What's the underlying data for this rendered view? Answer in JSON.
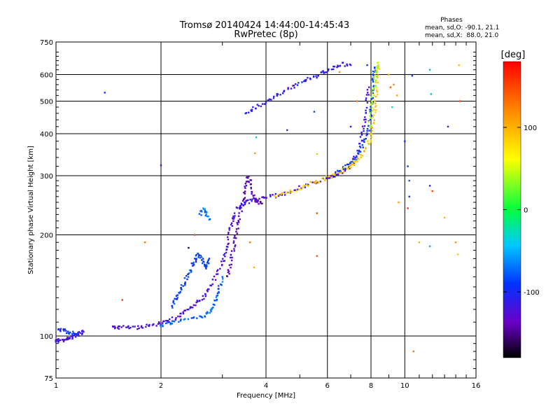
{
  "chart_data": {
    "type": "scatter",
    "title": "Tromsø 20140424 14:44:00-14:45:43",
    "subtitle": "RwPretec (8p)",
    "xlabel": "Frequency [MHz]",
    "ylabel": "Stationary phase Virtual Height [km]",
    "x_scale": "log",
    "y_scale": "log",
    "xlim": [
      1,
      16
    ],
    "ylim": [
      75,
      750
    ],
    "x_ticks": [
      1,
      2,
      4,
      6,
      8,
      10,
      16
    ],
    "y_ticks": [
      75,
      100,
      200,
      300,
      400,
      500,
      600,
      750
    ],
    "grid": true,
    "stats": {
      "header": "Phases",
      "o_line": "mean, sd,O: -90.1, 21.1",
      "x_line": "mean, sd,X:  88.0, 21.0"
    },
    "colorbar": {
      "label": "[deg]",
      "range": [
        -180,
        180
      ],
      "ticks": [
        100,
        0,
        -100
      ],
      "colormap": "rainbow"
    },
    "traces": [
      {
        "phase": -120,
        "points": [
          [
            1.0,
            97
          ],
          [
            1.02,
            97
          ],
          [
            1.05,
            97
          ],
          [
            1.08,
            98
          ],
          [
            1.1,
            99
          ],
          [
            1.13,
            100
          ],
          [
            1.16,
            101
          ],
          [
            1.2,
            103
          ]
        ]
      },
      {
        "phase": -95,
        "points": [
          [
            1.02,
            104
          ],
          [
            1.05,
            104
          ],
          [
            1.08,
            103
          ],
          [
            1.12,
            102
          ],
          [
            1.19,
            102
          ]
        ]
      },
      {
        "phase": -120,
        "points": [
          [
            1.45,
            106
          ],
          [
            1.5,
            106
          ],
          [
            1.6,
            106
          ],
          [
            1.7,
            106
          ],
          [
            1.8,
            107
          ],
          [
            1.9,
            108
          ],
          [
            2.0,
            109
          ],
          [
            2.1,
            111
          ],
          [
            2.2,
            113
          ],
          [
            2.3,
            116
          ],
          [
            2.4,
            120
          ],
          [
            2.5,
            124
          ],
          [
            2.6,
            128
          ],
          [
            2.7,
            134
          ],
          [
            2.8,
            142
          ],
          [
            2.9,
            153
          ],
          [
            3.0,
            166
          ],
          [
            3.05,
            175
          ],
          [
            3.1,
            188
          ],
          [
            3.15,
            205
          ],
          [
            3.2,
            220
          ],
          [
            3.25,
            232
          ]
        ]
      },
      {
        "phase": -75,
        "points": [
          [
            2.0,
            108
          ],
          [
            2.1,
            109
          ],
          [
            2.2,
            110
          ],
          [
            2.4,
            112
          ],
          [
            2.6,
            114
          ],
          [
            2.7,
            116
          ],
          [
            2.8,
            120
          ],
          [
            2.85,
            125
          ],
          [
            2.9,
            132
          ],
          [
            2.95,
            140
          ],
          [
            3.0,
            150
          ]
        ]
      },
      {
        "phase": -88,
        "points": [
          [
            2.15,
            122
          ],
          [
            2.2,
            128
          ],
          [
            2.25,
            134
          ],
          [
            2.3,
            140
          ],
          [
            2.35,
            146
          ],
          [
            2.4,
            152
          ],
          [
            2.45,
            160
          ],
          [
            2.5,
            168
          ],
          [
            2.55,
            175
          ],
          [
            2.6,
            172
          ],
          [
            2.65,
            165
          ],
          [
            2.7,
            160
          ],
          [
            2.75,
            170
          ]
        ]
      },
      {
        "phase": -70,
        "points": [
          [
            2.6,
            230
          ],
          [
            2.65,
            240
          ],
          [
            2.7,
            232
          ],
          [
            2.75,
            222
          ]
        ]
      },
      {
        "phase": -135,
        "points": [
          [
            3.1,
            150
          ],
          [
            3.15,
            160
          ],
          [
            3.2,
            175
          ],
          [
            3.25,
            190
          ],
          [
            3.3,
            205
          ],
          [
            3.35,
            220
          ],
          [
            3.4,
            240
          ],
          [
            3.45,
            260
          ],
          [
            3.5,
            280
          ],
          [
            3.55,
            300
          ],
          [
            3.6,
            290
          ],
          [
            3.65,
            270
          ],
          [
            3.7,
            255
          ],
          [
            3.8,
            250
          ],
          [
            3.9,
            248
          ]
        ]
      },
      {
        "phase": -118,
        "points": [
          [
            3.3,
            240
          ],
          [
            3.4,
            245
          ],
          [
            3.5,
            250
          ],
          [
            3.6,
            252
          ],
          [
            3.8,
            255
          ],
          [
            4.0,
            258
          ],
          [
            4.3,
            262
          ],
          [
            4.6,
            268
          ],
          [
            5.0,
            276
          ],
          [
            5.5,
            285
          ],
          [
            6.0,
            295
          ],
          [
            6.3,
            300
          ],
          [
            6.6,
            308
          ],
          [
            6.9,
            318
          ],
          [
            7.1,
            330
          ],
          [
            7.3,
            350
          ],
          [
            7.5,
            380
          ],
          [
            7.6,
            410
          ],
          [
            7.7,
            450
          ],
          [
            7.8,
            500
          ],
          [
            7.9,
            550
          ]
        ]
      },
      {
        "phase": -90,
        "points": [
          [
            6.3,
            305
          ],
          [
            6.6,
            312
          ],
          [
            6.9,
            322
          ],
          [
            7.2,
            335
          ],
          [
            7.4,
            350
          ],
          [
            7.6,
            370
          ],
          [
            7.8,
            395
          ],
          [
            7.9,
            420
          ],
          [
            8.0,
            460
          ],
          [
            8.05,
            500
          ],
          [
            8.1,
            550
          ],
          [
            8.15,
            600
          ],
          [
            8.2,
            630
          ]
        ]
      },
      {
        "phase": 90,
        "points": [
          [
            4.2,
            260
          ],
          [
            4.6,
            268
          ],
          [
            5.0,
            276
          ],
          [
            5.4,
            284
          ],
          [
            5.8,
            292
          ],
          [
            6.2,
            300
          ],
          [
            6.6,
            310
          ],
          [
            7.0,
            320
          ],
          [
            7.2,
            330
          ],
          [
            7.5,
            345
          ],
          [
            7.8,
            365
          ],
          [
            8.0,
            390
          ],
          [
            8.1,
            420
          ],
          [
            8.2,
            460
          ],
          [
            8.25,
            500
          ],
          [
            8.3,
            550
          ],
          [
            8.35,
            600
          ],
          [
            8.4,
            640
          ]
        ]
      },
      {
        "phase": 40,
        "points": [
          [
            7.9,
            420
          ],
          [
            8.0,
            470
          ],
          [
            8.1,
            520
          ],
          [
            8.2,
            570
          ],
          [
            8.3,
            620
          ],
          [
            8.35,
            650
          ]
        ]
      },
      {
        "phase": -110,
        "points": [
          [
            3.5,
            460
          ],
          [
            3.7,
            475
          ],
          [
            3.9,
            490
          ],
          [
            4.1,
            505
          ],
          [
            4.3,
            520
          ],
          [
            4.6,
            540
          ],
          [
            4.9,
            560
          ],
          [
            5.2,
            575
          ],
          [
            5.5,
            590
          ],
          [
            5.8,
            605
          ],
          [
            6.0,
            615
          ],
          [
            6.3,
            635
          ],
          [
            6.6,
            645
          ],
          [
            7.0,
            640
          ]
        ]
      }
    ],
    "scatter_points": [
      {
        "x": 1.38,
        "y": 530,
        "phase": -100
      },
      {
        "x": 2.0,
        "y": 322,
        "phase": -110
      },
      {
        "x": 3.75,
        "y": 390,
        "phase": -40
      },
      {
        "x": 3.72,
        "y": 350,
        "phase": 110
      },
      {
        "x": 3.6,
        "y": 190,
        "phase": 130
      },
      {
        "x": 4.6,
        "y": 410,
        "phase": -110
      },
      {
        "x": 5.5,
        "y": 465,
        "phase": -85
      },
      {
        "x": 5.6,
        "y": 348,
        "phase": 90
      },
      {
        "x": 5.6,
        "y": 232,
        "phase": 150
      },
      {
        "x": 5.6,
        "y": 173,
        "phase": 140
      },
      {
        "x": 1.55,
        "y": 128,
        "phase": 160
      },
      {
        "x": 1.8,
        "y": 190,
        "phase": 130
      },
      {
        "x": 2.4,
        "y": 183,
        "phase": -170
      },
      {
        "x": 2.5,
        "y": 200,
        "phase": 150
      },
      {
        "x": 3.7,
        "y": 160,
        "phase": 100
      },
      {
        "x": 9.3,
        "y": 560,
        "phase": 120
      },
      {
        "x": 9.5,
        "y": 520,
        "phase": 110
      },
      {
        "x": 10.0,
        "y": 380,
        "phase": -100
      },
      {
        "x": 10.2,
        "y": 320,
        "phase": -90
      },
      {
        "x": 10.3,
        "y": 290,
        "phase": -80
      },
      {
        "x": 10.3,
        "y": 260,
        "phase": -90
      },
      {
        "x": 10.2,
        "y": 240,
        "phase": 160
      },
      {
        "x": 10.6,
        "y": 90,
        "phase": 130
      },
      {
        "x": 10.5,
        "y": 595,
        "phase": -95
      },
      {
        "x": 11.8,
        "y": 620,
        "phase": -50
      },
      {
        "x": 11.9,
        "y": 525,
        "phase": -50
      },
      {
        "x": 11.8,
        "y": 280,
        "phase": -100
      },
      {
        "x": 12.0,
        "y": 270,
        "phase": 150
      },
      {
        "x": 11.8,
        "y": 185,
        "phase": -50
      },
      {
        "x": 13.3,
        "y": 420,
        "phase": -110
      },
      {
        "x": 14.3,
        "y": 640,
        "phase": 100
      },
      {
        "x": 14.4,
        "y": 500,
        "phase": 150
      },
      {
        "x": 14.0,
        "y": 190,
        "phase": 120
      },
      {
        "x": 14.2,
        "y": 175,
        "phase": 90
      },
      {
        "x": 11.0,
        "y": 190,
        "phase": 100
      },
      {
        "x": 9.6,
        "y": 250,
        "phase": 110
      },
      {
        "x": 7.3,
        "y": 500,
        "phase": 130
      },
      {
        "x": 9.0,
        "y": 600,
        "phase": 100
      },
      {
        "x": 9.2,
        "y": 480,
        "phase": -30
      },
      {
        "x": 9.1,
        "y": 550,
        "phase": 140
      },
      {
        "x": 7.0,
        "y": 420,
        "phase": -120
      },
      {
        "x": 7.8,
        "y": 640,
        "phase": -90
      },
      {
        "x": 6.5,
        "y": 610,
        "phase": 120
      },
      {
        "x": 13.0,
        "y": 225,
        "phase": 100
      }
    ]
  }
}
